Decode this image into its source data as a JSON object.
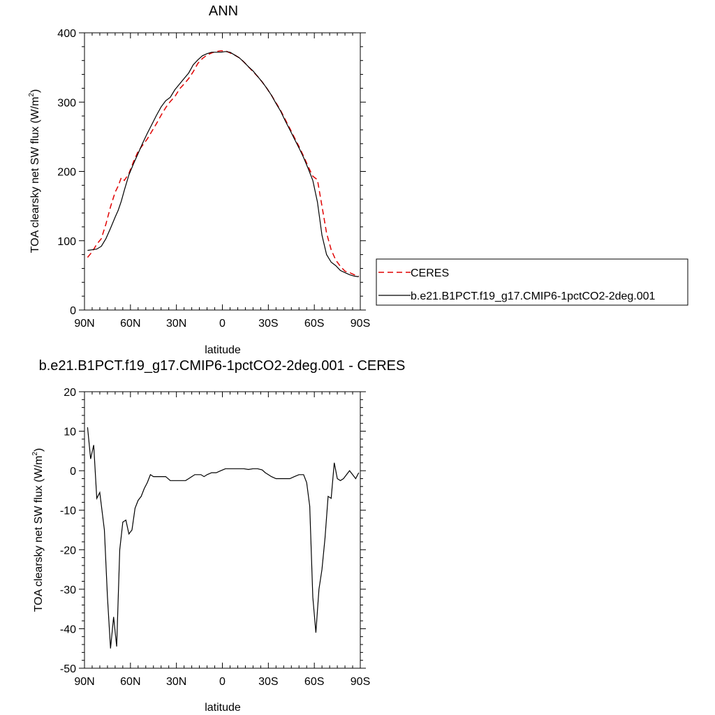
{
  "colors": {
    "model": "#000000",
    "ceres": "#e00000"
  },
  "chart_data": [
    {
      "type": "line",
      "title": "ANN",
      "xlabel": "latitude",
      "ylabel": "TOA clearsky net SW flux (W/m²)",
      "ylabel_main": "TOA clearsky net SW flux (W/m",
      "ylabel_sup": "2",
      "ylabel_end": ")",
      "xlim": [
        -90,
        90
      ],
      "ylim": [
        0,
        400
      ],
      "xticks": [
        -90,
        -60,
        -30,
        0,
        30,
        60,
        90
      ],
      "xtick_labels": [
        "90N",
        "60N",
        "30N",
        "0",
        "30S",
        "60S",
        "90S"
      ],
      "yticks": [
        0,
        100,
        200,
        300,
        400
      ],
      "ytick_labels": [
        "0",
        "100",
        "200",
        "300",
        "400"
      ],
      "grid": false,
      "legend_position": "right",
      "legend": [
        "CERES",
        "b.e21.B1PCT.f19_g17.CMIP6-1pctCO2-2deg.001"
      ],
      "x": [
        -88,
        -85,
        -82,
        -79,
        -76,
        -73,
        -70,
        -68,
        -66,
        -64,
        -61,
        -58,
        -55,
        -52,
        -49,
        -46,
        -43,
        -40,
        -37,
        -34,
        -31,
        -28,
        -25,
        -22,
        -19,
        -16,
        -13,
        -10,
        -7,
        -4,
        -1,
        2,
        5,
        8,
        11,
        14,
        17,
        20,
        23,
        26,
        29,
        32,
        35,
        38,
        41,
        44,
        47,
        50,
        53,
        56,
        59,
        62,
        65,
        68,
        71,
        74,
        77,
        80,
        83,
        86,
        89
      ],
      "series": [
        {
          "name": "CERES",
          "style": "dashed",
          "values": [
            76,
            84,
            95,
            103,
            124,
            149,
            170,
            179,
            191,
            187,
            197,
            214,
            229,
            238,
            247,
            258,
            269,
            281,
            292,
            301,
            308,
            319,
            326,
            334,
            344,
            356,
            363,
            368,
            371,
            373,
            374,
            374,
            371,
            368,
            364,
            358,
            351,
            344,
            337,
            329,
            320,
            310,
            299,
            288,
            275,
            262,
            249,
            236,
            222,
            207,
            193,
            188,
            150,
            111,
            87,
            72,
            63,
            56,
            54,
            51,
            49
          ]
        },
        {
          "name": "b.e21.B1PCT.f19_g17.CMIP6-1pctCO2-2deg.001",
          "style": "solid",
          "values": [
            86,
            87,
            88,
            92,
            103,
            118,
            134,
            144,
            157,
            173,
            195,
            211,
            226,
            241,
            255,
            268,
            281,
            293,
            302,
            307,
            318,
            326,
            334,
            342,
            354,
            361,
            367,
            370,
            372,
            372,
            372,
            373,
            372,
            368,
            364,
            358,
            351,
            345,
            337,
            329,
            320,
            310,
            298,
            287,
            273,
            260,
            247,
            234,
            220,
            204,
            187,
            156,
            108,
            80,
            69,
            64,
            57,
            54,
            51,
            49,
            48
          ]
        }
      ]
    },
    {
      "type": "line",
      "title": "b.e21.B1PCT.f19_g17.CMIP6-1pctCO2-2deg.001 - CERES",
      "xlabel": "latitude",
      "ylabel": "TOA clearsky net SW flux (W/m²)",
      "ylabel_main": "TOA clearsky net SW flux (W/m",
      "ylabel_sup": "2",
      "ylabel_end": ")",
      "xlim": [
        -90,
        90
      ],
      "ylim": [
        -50,
        20
      ],
      "xticks": [
        -90,
        -60,
        -30,
        0,
        30,
        60,
        90
      ],
      "xtick_labels": [
        "90N",
        "60N",
        "30N",
        "0",
        "30S",
        "60S",
        "90S"
      ],
      "yticks": [
        -50,
        -40,
        -30,
        -20,
        -10,
        0,
        10,
        20
      ],
      "ytick_labels": [
        "-50",
        "-40",
        "-30",
        "-20",
        "-10",
        "0",
        "10",
        "20"
      ],
      "grid": false,
      "series": [
        {
          "style": "solid",
          "x": [
            -88,
            -86,
            -84,
            -82,
            -80,
            -77,
            -75,
            -73,
            -71,
            -69,
            -67,
            -65,
            -63,
            -61,
            -59,
            -57,
            -55,
            -53,
            -51,
            -49,
            -47,
            -45,
            -43,
            -41,
            -39,
            -37,
            -34,
            -32,
            -30,
            -28,
            -26,
            -24,
            -22,
            -20,
            -18,
            -16,
            -14,
            -12,
            -10,
            -7,
            -4,
            -1,
            2,
            5,
            8,
            11,
            14,
            17,
            20,
            23,
            26,
            28,
            30,
            32,
            35,
            38,
            41,
            44,
            47,
            50,
            53,
            55,
            57,
            59,
            61,
            63,
            65,
            67,
            69,
            71,
            73,
            75,
            77,
            79,
            81,
            83,
            85,
            87,
            89
          ],
          "values": [
            11,
            3,
            6.5,
            -7,
            -5.5,
            -15,
            -32,
            -45,
            -37,
            -44.5,
            -20,
            -13,
            -12.5,
            -16,
            -15,
            -9.5,
            -7.5,
            -6.5,
            -4.5,
            -3,
            -1,
            -1.5,
            -1.5,
            -1.5,
            -1.5,
            -1.5,
            -2.5,
            -2.5,
            -2.5,
            -2.5,
            -2.5,
            -2.5,
            -2,
            -1.5,
            -1,
            -1,
            -1,
            -1.5,
            -1,
            -0.5,
            -0.5,
            0,
            0.5,
            0.5,
            0.5,
            0.5,
            0.5,
            0.3,
            0.5,
            0.5,
            0.2,
            -0.5,
            -1,
            -1.5,
            -2,
            -2,
            -2,
            -2,
            -1.5,
            -1,
            -1,
            -3,
            -9,
            -32,
            -41,
            -30,
            -25,
            -17,
            -6.5,
            -7,
            2,
            -2,
            -2.5,
            -2,
            -1,
            0,
            -1,
            -2,
            -0.5
          ]
        }
      ]
    }
  ]
}
